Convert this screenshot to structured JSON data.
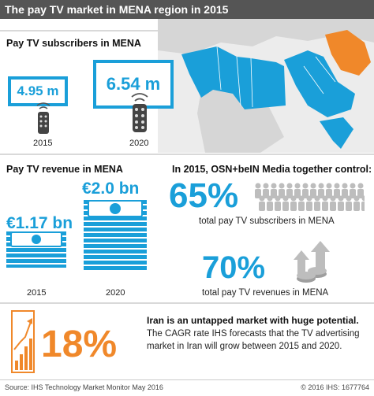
{
  "title": "The pay TV market in MENA region in 2015",
  "subscribers": {
    "heading": "Pay TV subscribers in MENA",
    "items": [
      {
        "value": "4.95 m",
        "year": "2015"
      },
      {
        "value": "6.54 m",
        "year": "2020"
      }
    ]
  },
  "revenue": {
    "heading": "Pay TV revenue in MENA",
    "items": [
      {
        "value": "€1.17 bn",
        "year": "2015"
      },
      {
        "value": "€2.0 bn",
        "year": "2020"
      }
    ]
  },
  "control": {
    "heading": "In 2015, OSN+beIN Media together control:",
    "subs_pct": "65%",
    "subs_label": "total pay TV subscribers in MENA",
    "rev_pct": "70%",
    "rev_label": "total pay TV revenues in MENA"
  },
  "iran": {
    "pct": "18%",
    "headline": "Iran is an untapped market with huge potential.",
    "line1": "The CAGR rate IHS forecasts that the TV advertising",
    "line2": "market in Iran will grow between 2015 and 2020."
  },
  "footer": {
    "source": "Source: IHS Technology Market Monitor May 2016",
    "copyright": "© 2016 IHS: 1677764"
  },
  "colors": {
    "accent": "#1a9fd9",
    "iran": "#f0882a",
    "header": "#555555"
  },
  "chart_data": [
    {
      "type": "bar",
      "title": "Pay TV subscribers in MENA",
      "categories": [
        "2015",
        "2020"
      ],
      "values": [
        4.95,
        6.54
      ],
      "unit": "m"
    },
    {
      "type": "bar",
      "title": "Pay TV revenue in MENA",
      "categories": [
        "2015",
        "2020"
      ],
      "values": [
        1.17,
        2.0
      ],
      "unit": "€ bn"
    }
  ]
}
